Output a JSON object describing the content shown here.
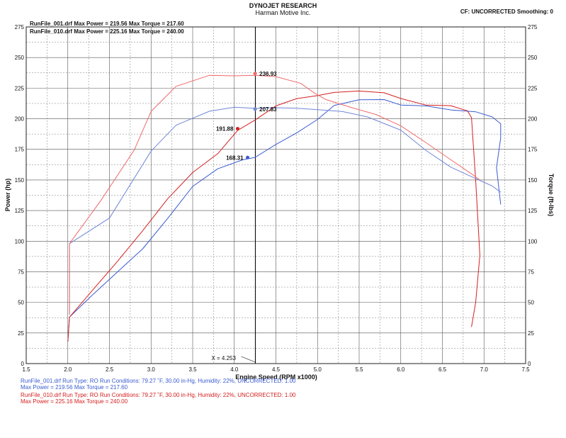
{
  "header": {
    "title": "DYNOJET RESEARCH",
    "subtitle": "Harman Motive Inc.",
    "settings": "CF: UNCORRECTED  Smoothing: 0"
  },
  "legend": {
    "run1": "RunFile_001.drf Max Power = 219.56     Max Torque = 217.60",
    "run2": "RunFile_010.drf Max Power = 225.16     Max Torque = 240.00"
  },
  "footer": {
    "run1_line1": "RunFile_001.drf  Run Type: RO  Run Conditions: 79.27 ˚F, 30.00 in-Hg,  Humidity:  22%, UNCORRECTED: 1.00",
    "run1_line2": "Max Power = 219.56  Max Torque = 217.60",
    "run2_line1": "RunFile_010.drf  Run Type: RO  Run Conditions: 79.27 ˚F, 30.00 in-Hg,  Humidity:  22%, UNCORRECTED: 1.00",
    "run2_line2": "Max Power = 225.16  Max Torque = 240.00"
  },
  "colors": {
    "run1": "#3a5bd0",
    "run1_light": "#6f86d8",
    "run2": "#d42020",
    "run2_light": "#ee6a6a",
    "grid": "#555555",
    "cursor": "#000000"
  },
  "chart_data": {
    "type": "line",
    "xlabel": "Engine Speed (RPM x1000)",
    "ylabel_left": "Power (hp)",
    "ylabel_right": "Torque (ft-lbs)",
    "xlim": [
      1.5,
      7.5
    ],
    "ylim": [
      0,
      275
    ],
    "grid": true,
    "x_ticks": [
      "1.5",
      "2.0",
      "2.5",
      "3.0",
      "3.5",
      "4.0",
      "4.5",
      "5.0",
      "5.5",
      "6.0",
      "6.5",
      "7.0",
      "7.5"
    ],
    "y_ticks": [
      "0",
      "25",
      "50",
      "75",
      "100",
      "125",
      "150",
      "175",
      "200",
      "225",
      "250",
      "275"
    ],
    "cursor": {
      "x": 4.253,
      "label": "X = 4.253"
    },
    "markers": [
      {
        "x": 4.25,
        "y": 236.93,
        "label": "236.93",
        "series": "RunFile_010.drf Torque"
      },
      {
        "x": 4.25,
        "y": 207.83,
        "label": "207.83",
        "series": "RunFile_001.drf Torque"
      },
      {
        "x": 4.04,
        "y": 191.88,
        "label": "191.88",
        "series": "RunFile_010.drf Power"
      },
      {
        "x": 4.16,
        "y": 168.31,
        "label": "168.31",
        "series": "RunFile_001.drf Power"
      }
    ],
    "series": [
      {
        "name": "RunFile_001.drf Power",
        "color": "#3a5bd0",
        "x": [
          2.0,
          2.02,
          2.3,
          2.6,
          2.9,
          3.2,
          3.5,
          3.8,
          4.1,
          4.25,
          4.5,
          4.75,
          5.0,
          5.2,
          5.5,
          5.8,
          6.0,
          6.3,
          6.6,
          6.9,
          7.1,
          7.2,
          7.2,
          7.15,
          7.2
        ],
        "y": [
          18,
          38,
          55,
          75,
          95,
          120,
          145,
          158,
          165,
          168,
          180,
          190,
          200,
          210,
          214,
          215,
          212,
          212,
          208,
          205,
          200,
          195,
          185,
          160,
          130
        ]
      },
      {
        "name": "RunFile_010.drf Power",
        "color": "#d42020",
        "x": [
          2.0,
          2.02,
          2.3,
          2.6,
          2.9,
          3.2,
          3.5,
          3.8,
          4.04,
          4.25,
          4.5,
          4.75,
          5.0,
          5.2,
          5.5,
          5.8,
          6.0,
          6.3,
          6.6,
          6.8,
          6.85,
          6.9,
          6.95,
          6.9,
          6.85
        ],
        "y": [
          18,
          38,
          60,
          85,
          110,
          135,
          155,
          170,
          190,
          200,
          212,
          217,
          218,
          220,
          222,
          222,
          218,
          212,
          210,
          205,
          200,
          150,
          90,
          50,
          30
        ]
      },
      {
        "name": "RunFile_001.drf Torque",
        "color": "#6f86d8",
        "x": [
          2.02,
          2.02,
          2.5,
          3.0,
          3.3,
          3.7,
          4.0,
          4.25,
          4.5,
          4.75,
          5.0,
          5.3,
          5.6,
          6.0,
          6.3,
          6.6,
          6.9,
          7.1,
          7.2
        ],
        "y": [
          40,
          98,
          120,
          175,
          195,
          205,
          208,
          208,
          210,
          210,
          208,
          205,
          200,
          190,
          175,
          162,
          152,
          145,
          140
        ]
      },
      {
        "name": "RunFile_010.drf Torque",
        "color": "#ee6a6a",
        "x": [
          2.02,
          2.02,
          2.4,
          2.8,
          3.0,
          3.3,
          3.7,
          4.0,
          4.25,
          4.5,
          4.8,
          4.95,
          5.1,
          5.4,
          5.7,
          6.0,
          6.3,
          6.6,
          6.85,
          6.95
        ],
        "y": [
          40,
          98,
          135,
          175,
          205,
          225,
          235,
          236,
          237,
          235,
          228,
          220,
          215,
          210,
          205,
          195,
          180,
          165,
          155,
          150
        ]
      }
    ]
  }
}
